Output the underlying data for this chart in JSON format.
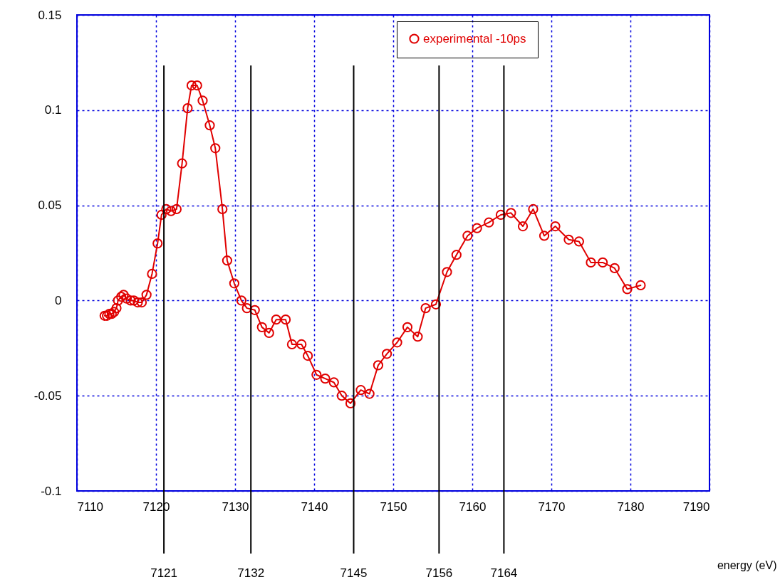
{
  "chart_data": {
    "type": "line",
    "xlabel": "energy (eV)",
    "xlim": [
      7110,
      7190
    ],
    "xticks": [
      7110,
      7120,
      7130,
      7140,
      7150,
      7160,
      7170,
      7180,
      7190
    ],
    "ylim": [
      -0.1,
      0.15
    ],
    "yticks": [
      -0.1,
      -0.05,
      0,
      0.05,
      0.1,
      0.15
    ],
    "grid": true,
    "legend": "top right",
    "marker": "circle",
    "line_style": "solid",
    "x": [
      7113.5,
      7113.8,
      7114.1,
      7114.4,
      7114.7,
      7115.0,
      7115.2,
      7115.6,
      7115.9,
      7116.3,
      7116.8,
      7117.2,
      7117.7,
      7118.2,
      7118.8,
      7119.5,
      7120.2,
      7120.7,
      7121.3,
      7121.9,
      7122.6,
      7123.3,
      7124.0,
      7124.5,
      7125.2,
      7125.9,
      7126.8,
      7127.5,
      7128.4,
      7129.0,
      7129.9,
      7130.8,
      7131.5,
      7132.5,
      7133.4,
      7134.3,
      7135.2,
      7136.4,
      7137.2,
      7138.4,
      7139.2,
      7140.3,
      7141.4,
      7142.5,
      7143.5,
      7144.6,
      7145.9,
      7147.0,
      7148.1,
      7149.2,
      7150.5,
      7151.8,
      7153.1,
      7154.1,
      7155.4,
      7156.8,
      7158.0,
      7159.4,
      7160.6,
      7162.1,
      7163.6,
      7164.9,
      7166.4,
      7167.7,
      7169.1,
      7170.5,
      7172.2,
      7173.5,
      7175.0,
      7176.5,
      7178.0,
      7179.6,
      7181.3
    ],
    "series": [
      {
        "name": "experimental -10ps",
        "color": "#e00000",
        "values": [
          -0.008,
          -0.008,
          -0.007,
          -0.007,
          -0.006,
          -0.004,
          0.0,
          0.002,
          0.003,
          0.001,
          0.0,
          0.0,
          -0.001,
          -0.001,
          0.003,
          0.014,
          0.03,
          0.045,
          0.048,
          0.047,
          0.048,
          0.072,
          0.101,
          0.113,
          0.113,
          0.105,
          0.092,
          0.08,
          0.048,
          0.021,
          0.009,
          0.0,
          -0.004,
          -0.005,
          -0.014,
          -0.017,
          -0.01,
          -0.01,
          -0.023,
          -0.023,
          -0.029,
          -0.039,
          -0.041,
          -0.043,
          -0.05,
          -0.054,
          -0.047,
          -0.049,
          -0.034,
          -0.028,
          -0.022,
          -0.014,
          -0.019,
          -0.004,
          -0.002,
          0.015,
          0.024,
          0.034,
          0.038,
          0.041,
          0.045,
          0.046,
          0.039,
          0.048,
          0.034,
          0.039,
          0.032,
          0.031,
          0.02,
          0.02,
          0.017,
          0.006,
          0.008
        ]
      }
    ],
    "ref_lines": [
      {
        "axis": "x",
        "value": 7121,
        "label": "7121",
        "color": "#000000"
      },
      {
        "axis": "x",
        "value": 7132.0,
        "label": "7132",
        "color": "#000000"
      },
      {
        "axis": "x",
        "value": 7145,
        "label": "7145",
        "color": "#000000"
      },
      {
        "axis": "x",
        "value": 7155.8,
        "label": "7156",
        "color": "#000000"
      },
      {
        "axis": "x",
        "value": 7164,
        "label": "7164",
        "color": "#000000"
      }
    ]
  }
}
